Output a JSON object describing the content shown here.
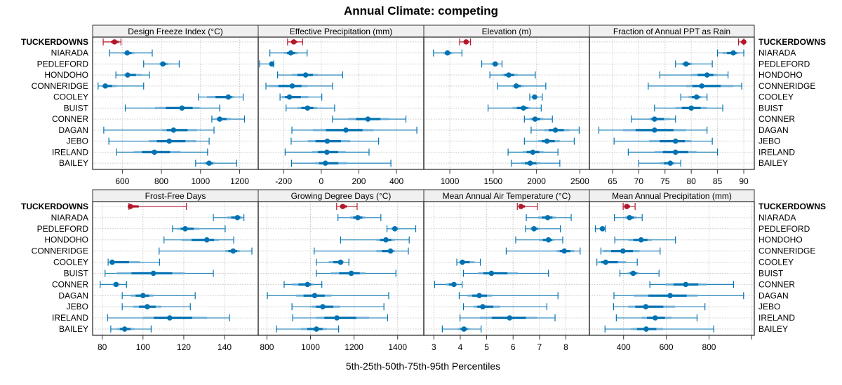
{
  "chart_data": {
    "type": "dot-percentile",
    "title": "Annual Climate: competing",
    "xlabel": "5th-25th-50th-75th-95th Percentiles",
    "colors": {
      "focus": "#B2182B",
      "others": "#0072B2",
      "others_light": "#6BAED6",
      "strip_bg": "#F0F0F0",
      "grid": "#C8C8C8"
    },
    "rows": [
      "TUCKERDOWNS",
      "NIARADA",
      "PEDLEFORD",
      "HONDOHO",
      "CONNERIDGE",
      "COOLEY",
      "BUIST",
      "CONNER",
      "DAGAN",
      "JEBO",
      "IRELAND",
      "BAILEY"
    ],
    "focus_row": "TUCKERDOWNS",
    "panels": [
      {
        "name": "Design Freeze Index (°C)",
        "xlim": [
          448,
          1295
        ],
        "ticks": [
          600,
          800,
          1000,
          1200
        ],
        "tick_labels": [
          "600",
          "800",
          "1000",
          "1200"
        ],
        "label_side": "left",
        "axis_side": "bottom",
        "data": [
          [
            502,
            542,
            560,
            582,
            593
          ],
          [
            535,
            604,
            625,
            662,
            753
          ],
          [
            709,
            790,
            807,
            836,
            891
          ],
          [
            567,
            607,
            627,
            698,
            738
          ],
          [
            476,
            495,
            513,
            571,
            709
          ],
          [
            989,
            1033,
            1142,
            1171,
            1218
          ],
          [
            615,
            767,
            905,
            996,
            1098
          ],
          [
            1058,
            1075,
            1098,
            1156,
            1225
          ],
          [
            505,
            804,
            862,
            982,
            1069
          ],
          [
            531,
            735,
            840,
            978,
            1044
          ],
          [
            571,
            658,
            764,
            898,
            1036
          ],
          [
            975,
            1015,
            1044,
            1076,
            1185
          ]
        ]
      },
      {
        "name": "Effective Precipitation (mm)",
        "xlim": [
          -335,
          545
        ],
        "ticks": [
          -200,
          0,
          200,
          400
        ],
        "tick_labels": [
          "-200",
          "0",
          "200",
          "400"
        ],
        "axis_side": "bottom",
        "data": [
          [
            -179,
            -161,
            -146,
            -128,
            -99
          ],
          [
            -273,
            -196,
            -162,
            -123,
            -75
          ],
          [
            -328,
            -270,
            -263,
            -258,
            -253
          ],
          [
            -232,
            -156,
            -83,
            -18,
            114
          ],
          [
            -294,
            -277,
            -154,
            -72,
            60
          ],
          [
            -219,
            -208,
            -169,
            -68,
            3
          ],
          [
            -187,
            -127,
            -73,
            -21,
            71
          ],
          [
            60,
            143,
            248,
            359,
            450
          ],
          [
            -156,
            -45,
            131,
            278,
            508
          ],
          [
            -160,
            -72,
            32,
            154,
            305
          ],
          [
            -192,
            -50,
            30,
            130,
            254
          ],
          [
            -158,
            -34,
            22,
            137,
            370
          ]
        ]
      },
      {
        "name": "Elevation (m)",
        "xlim": [
          700,
          2610
        ],
        "ticks": [
          1000,
          1500,
          2000,
          2500
        ],
        "tick_labels": [
          "1000",
          "1500",
          "2000",
          "2500"
        ],
        "axis_side": "bottom",
        "data": [
          [
            1113,
            1160,
            1188,
            1215,
            1239
          ],
          [
            812,
            925,
            973,
            1032,
            1140
          ],
          [
            1368,
            1480,
            1524,
            1560,
            1602
          ],
          [
            1462,
            1597,
            1680,
            1785,
            1986
          ],
          [
            1551,
            1718,
            1766,
            1852,
            2107
          ],
          [
            1922,
            1950,
            1978,
            2010,
            2067
          ],
          [
            1441,
            1723,
            1849,
            1927,
            2054
          ],
          [
            1860,
            1919,
            1984,
            2081,
            2183
          ],
          [
            1938,
            2089,
            2218,
            2380,
            2492
          ],
          [
            1860,
            2019,
            2121,
            2269,
            2435
          ],
          [
            1672,
            1839,
            1957,
            2081,
            2247
          ],
          [
            1712,
            1825,
            1927,
            2046,
            2269
          ]
        ]
      },
      {
        "name": "Fraction of Annual PPT as Rain",
        "xlim": [
          60.6,
          92.0
        ],
        "ticks": [
          65,
          70,
          75,
          80,
          85,
          90
        ],
        "tick_labels": [
          "65",
          "70",
          "75",
          "80",
          "85",
          "90"
        ],
        "label_side": "right",
        "axis_side": "bottom",
        "data": [
          [
            89.0,
            89.5,
            90.0,
            90.0,
            90.0
          ],
          [
            85.0,
            86.0,
            88.0,
            89.0,
            90.0
          ],
          [
            77.0,
            78.1,
            79.0,
            80.2,
            84.0
          ],
          [
            74.0,
            80.0,
            83.0,
            85.0,
            87.0
          ],
          [
            71.8,
            79.0,
            82.0,
            88.0,
            89.6
          ],
          [
            78.0,
            79.5,
            81.0,
            82.0,
            83.0
          ],
          [
            73.0,
            77.0,
            80.0,
            83.0,
            86.0
          ],
          [
            68.6,
            72.0,
            73.0,
            76.0,
            77.0
          ],
          [
            62.4,
            67.0,
            73.0,
            79.0,
            83.0
          ],
          [
            65.3,
            72.0,
            77.0,
            80.0,
            84.0
          ],
          [
            68.0,
            73.0,
            77.0,
            81.0,
            85.0
          ],
          [
            70.0,
            74.0,
            76.0,
            77.0,
            78.0
          ]
        ]
      },
      {
        "name": "Frost-Free Days",
        "xlim": [
          75.3,
          156.5
        ],
        "ticks": [
          80,
          100,
          120,
          140
        ],
        "tick_labels": [
          "80",
          "100",
          "120",
          "140"
        ],
        "label_side": "left",
        "axis_side": "bottom",
        "data": [
          [
            93.1,
            93.0,
            93.8,
            97.9,
            121.3
          ],
          [
            134.5,
            141.2,
            146.3,
            148.7,
            149.5
          ],
          [
            114.5,
            117.0,
            120.7,
            127.7,
            140.3
          ],
          [
            110.3,
            118.9,
            131.3,
            137.3,
            144.5
          ],
          [
            107.9,
            140.3,
            144.2,
            147.5,
            153.4
          ],
          [
            82.9,
            83.5,
            84.9,
            98.6,
            108.1
          ],
          [
            81.4,
            87.2,
            105.1,
            120.5,
            134.5
          ],
          [
            79.0,
            85.0,
            86.8,
            88.6,
            91.9
          ],
          [
            89.8,
            94.0,
            100.0,
            105.1,
            125.6
          ],
          [
            89.8,
            95.2,
            102.1,
            109.0,
            123.2
          ],
          [
            82.6,
            100.0,
            113.1,
            131.5,
            142.4
          ],
          [
            84.2,
            87.1,
            91.0,
            95.8,
            104.0
          ]
        ]
      },
      {
        "name": "Growing Degree Days (°C)",
        "xlim": [
          760,
          1520
        ],
        "ticks": [
          800,
          1000,
          1200,
          1400
        ],
        "tick_labels": [
          "800",
          "1000",
          "1200",
          "1400"
        ],
        "axis_side": "bottom",
        "data": [
          [
            1120,
            1135,
            1148,
            1167,
            1214
          ],
          [
            1126,
            1182,
            1217,
            1252,
            1323
          ],
          [
            1351,
            1368,
            1387,
            1409,
            1483
          ],
          [
            1138,
            1302,
            1346,
            1387,
            1453
          ],
          [
            1017,
            1302,
            1367,
            1387,
            1449
          ],
          [
            1027,
            1083,
            1138,
            1153,
            1176
          ],
          [
            1027,
            1094,
            1187,
            1252,
            1392
          ],
          [
            879,
            917,
            986,
            1014,
            1052
          ],
          [
            802,
            934,
            1019,
            1096,
            1359
          ],
          [
            915,
            1005,
            1056,
            1137,
            1337
          ],
          [
            918,
            1025,
            1121,
            1269,
            1354
          ],
          [
            844,
            956,
            1027,
            1074,
            1129
          ]
        ]
      },
      {
        "name": "Mean Annual Air Temperature (°C)",
        "xlim": [
          2.62,
          8.89
        ],
        "ticks": [
          3,
          4,
          5,
          6,
          7,
          8
        ],
        "tick_labels": [
          "3",
          "4",
          "5",
          "6",
          "7",
          "8"
        ],
        "axis_side": "bottom",
        "data": [
          [
            6.16,
            6.23,
            6.3,
            6.45,
            6.92
          ],
          [
            6.5,
            6.94,
            7.31,
            7.61,
            8.2
          ],
          [
            6.47,
            6.63,
            6.79,
            7.03,
            7.79
          ],
          [
            6.1,
            6.99,
            7.34,
            7.56,
            7.88
          ],
          [
            5.74,
            7.65,
            7.94,
            8.32,
            8.54
          ],
          [
            3.87,
            3.96,
            4.08,
            4.54,
            4.76
          ],
          [
            4.12,
            4.67,
            5.18,
            6.19,
            7.34
          ],
          [
            3.03,
            3.44,
            3.76,
            3.9,
            4.07
          ],
          [
            3.96,
            4.27,
            4.72,
            5.21,
            7.7
          ],
          [
            4.12,
            4.51,
            4.85,
            5.52,
            7.28
          ],
          [
            3.99,
            4.74,
            5.87,
            6.9,
            7.59
          ],
          [
            3.32,
            3.92,
            4.14,
            4.36,
            4.79
          ]
        ]
      },
      {
        "name": "Mean Annual Precipitation (mm)",
        "xlim": [
          240,
          1012
        ],
        "ticks": [
          400,
          600,
          800,
          1000
        ],
        "tick_labels": [
          "400",
          "600",
          "800",
          ""
        ],
        "label_side": "right",
        "axis_side": "bottom",
        "data": [
          [
            398,
            405,
            415,
            430,
            454
          ],
          [
            357,
            406,
            428,
            462,
            487
          ],
          [
            268,
            292,
            301,
            308,
            314
          ],
          [
            359,
            422,
            482,
            532,
            643
          ],
          [
            294,
            305,
            397,
            475,
            571
          ],
          [
            275,
            282,
            316,
            411,
            464
          ],
          [
            383,
            419,
            445,
            473,
            566
          ],
          [
            523,
            596,
            691,
            789,
            915
          ],
          [
            355,
            448,
            618,
            747,
            962
          ],
          [
            353,
            422,
            504,
            641,
            781
          ],
          [
            366,
            484,
            548,
            624,
            744
          ],
          [
            313,
            434,
            506,
            585,
            822
          ]
        ]
      }
    ]
  }
}
